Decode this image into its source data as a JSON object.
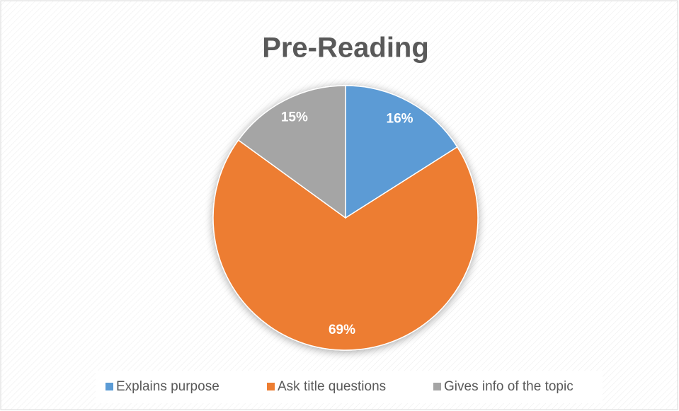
{
  "chart_data": {
    "type": "pie",
    "title": "Pre-Reading",
    "categories": [
      "Explains purpose",
      "Ask title questions",
      "Gives info of the topic"
    ],
    "values": [
      16,
      69,
      15
    ],
    "value_labels": [
      "16%",
      "69%",
      "15%"
    ],
    "colors": [
      "#5b9bd5",
      "#ed7d31",
      "#a5a5a5"
    ],
    "legend": "bottom"
  }
}
